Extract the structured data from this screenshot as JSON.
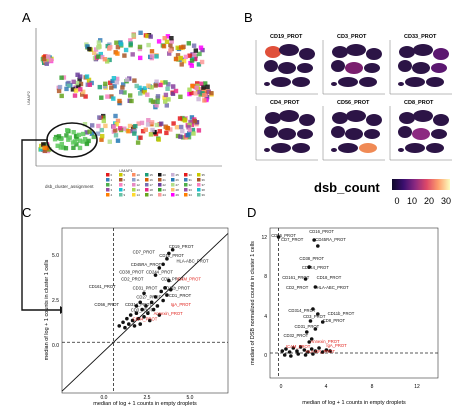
{
  "panel_labels": {
    "a": "A",
    "b": "B",
    "c": "C",
    "d": "D"
  },
  "panel_a": {
    "xlabel": "UMAP1",
    "ylabel": "UMAP2",
    "legend_title": "dsb_cluster_assignment",
    "legend_keys": [
      "0",
      "1",
      "2",
      "3",
      "4",
      "5",
      "6",
      "7",
      "8",
      "9",
      "10",
      "11",
      "12",
      "13",
      "14",
      "15",
      "16",
      "17",
      "18",
      "19",
      "20",
      "21",
      "22",
      "23",
      "24",
      "25",
      "26",
      "27",
      "28",
      "29",
      "30",
      "31",
      "32",
      "33",
      "34",
      "35",
      "36",
      "37",
      "38",
      "39"
    ]
  },
  "panel_b": {
    "facets": [
      {
        "title": "CD19_PROT"
      },
      {
        "title": "CD3_PROT"
      },
      {
        "title": "CD33_PROT"
      },
      {
        "title": "CD4_PROT"
      },
      {
        "title": "CD56_PROT"
      },
      {
        "title": "CD8_PROT"
      }
    ],
    "colorbar": {
      "title": "dsb_count",
      "ticks": [
        "0",
        "10",
        "20",
        "30"
      ],
      "colors": [
        "#0d0829",
        "#3b0f6f",
        "#8c2981",
        "#de4968",
        "#fe9f6d",
        "#fcfdbf"
      ]
    }
  },
  "chart_data": [
    {
      "type": "scatter",
      "panel": "C",
      "title": "",
      "xlabel": "median of log + 1 counts in empty droplets",
      "ylabel": "median of log + 1 counts in cluster 1 cells",
      "xlim": [
        -2.7,
        6
      ],
      "ylim": [
        -2.8,
        6.3
      ],
      "xticks": [
        "0.0",
        "2.5",
        "5.0"
      ],
      "yticks": [
        "0.0",
        "2.5",
        "5.0"
      ],
      "reference_lines": {
        "hline": 0,
        "vline": 0,
        "diagonal": "y = x"
      },
      "points": [
        {
          "x": 0.3,
          "y": 0.9
        },
        {
          "x": 0.5,
          "y": 1.1
        },
        {
          "x": 0.6,
          "y": 0.8
        },
        {
          "x": 0.7,
          "y": 1.3
        },
        {
          "x": 0.8,
          "y": 1.0
        },
        {
          "x": 0.9,
          "y": 1.5
        },
        {
          "x": 1.0,
          "y": 1.2
        },
        {
          "x": 1.1,
          "y": 0.9
        },
        {
          "x": 1.2,
          "y": 1.6
        },
        {
          "x": 1.3,
          "y": 1.3
        },
        {
          "x": 1.4,
          "y": 1.0
        },
        {
          "x": 1.5,
          "y": 1.8
        },
        {
          "x": 1.6,
          "y": 1.4
        },
        {
          "x": 1.7,
          "y": 2.0
        },
        {
          "x": 1.8,
          "y": 1.6
        },
        {
          "x": 1.9,
          "y": 1.2
        },
        {
          "x": 2.0,
          "y": 2.2
        },
        {
          "x": 2.1,
          "y": 1.8
        },
        {
          "x": 2.2,
          "y": 2.5
        },
        {
          "x": 2.3,
          "y": 2.0
        },
        {
          "x": 2.4,
          "y": 1.5
        },
        {
          "x": 2.5,
          "y": 2.8
        },
        {
          "x": 2.6,
          "y": 2.3
        },
        {
          "x": 2.7,
          "y": 3.0
        },
        {
          "x": 2.8,
          "y": 2.6
        },
        {
          "x": 2.9,
          "y": 3.4
        },
        {
          "x": 3.0,
          "y": 2.9
        },
        {
          "x": 2.2,
          "y": 3.7
        },
        {
          "x": 2.4,
          "y": 4.1
        },
        {
          "x": 2.6,
          "y": 4.3
        },
        {
          "x": 2.8,
          "y": 4.6
        },
        {
          "x": 2.9,
          "y": 4.9
        },
        {
          "x": 3.1,
          "y": 5.1
        },
        {
          "x": 1.6,
          "y": 2.7
        },
        {
          "x": 1.4,
          "y": 2.2
        },
        {
          "x": 1.2,
          "y": 2.0
        }
      ],
      "labels": [
        {
          "text": "CD19_PROT",
          "x": 2.9,
          "y": 5.2,
          "color": "black"
        },
        {
          "text": "CD7_PROT",
          "x": 1.0,
          "y": 4.9,
          "color": "black"
        },
        {
          "text": "CD16_PROT",
          "x": 2.4,
          "y": 4.7,
          "color": "black"
        },
        {
          "text": "HLA-ABC_PROT",
          "x": 3.3,
          "y": 4.4,
          "color": "black"
        },
        {
          "text": "CD45RA_PROT",
          "x": 0.9,
          "y": 4.2,
          "color": "black"
        },
        {
          "text": "CD38_PROT",
          "x": 0.3,
          "y": 3.8,
          "color": "black"
        },
        {
          "text": "CD244_PROT",
          "x": 1.7,
          "y": 3.8,
          "color": "black"
        },
        {
          "text": "CD2_PROT",
          "x": 0.4,
          "y": 3.4,
          "color": "black"
        },
        {
          "text": "CD8_PROT",
          "x": 2.5,
          "y": 3.4,
          "color": "black"
        },
        {
          "text": "ICAM_PROT",
          "x": 3.3,
          "y": 3.4,
          "color": "red"
        },
        {
          "text": "CD161_PROT",
          "x": -1.3,
          "y": 3.0,
          "color": "black"
        },
        {
          "text": "CD31_PROT",
          "x": 1.0,
          "y": 2.9,
          "color": "black"
        },
        {
          "text": "CD11b_PROT",
          "x": 2.6,
          "y": 2.9,
          "color": "black"
        },
        {
          "text": "CD1_PROT",
          "x": 2.9,
          "y": 2.5,
          "color": "black"
        },
        {
          "text": "CD27_PROT",
          "x": 1.2,
          "y": 2.4,
          "color": "black"
        },
        {
          "text": "IgA_PROT",
          "x": 3.0,
          "y": 2.0,
          "color": "red"
        },
        {
          "text": "CD56_PROT",
          "x": -1.0,
          "y": 2.0,
          "color": "black"
        },
        {
          "text": "CD314_PROT",
          "x": 0.6,
          "y": 2.0,
          "color": "black"
        },
        {
          "text": "CD3_PROT",
          "x": 0.9,
          "y": 1.7,
          "color": "black"
        },
        {
          "text": "Annexin_PROT",
          "x": 2.1,
          "y": 1.5,
          "color": "red"
        },
        {
          "text": "CD44_PROT",
          "x": 1.0,
          "y": 1.2,
          "color": "red"
        }
      ]
    },
    {
      "type": "scatter",
      "panel": "D",
      "title": "",
      "xlabel": "median of log + 1 counts in empty droplets",
      "ylabel": "median of DSB normalized counts in cluster 1 cells",
      "xlim": [
        -0.7,
        13
      ],
      "ylim": [
        -2.5,
        12.5
      ],
      "xticks": [
        "0",
        "4",
        "8",
        "12"
      ],
      "yticks": [
        "0",
        "4",
        "8",
        "12"
      ],
      "reference_lines": {
        "hline": 0,
        "vline": 0
      },
      "points": [
        {
          "x": 0.3,
          "y": 0.2
        },
        {
          "x": 0.6,
          "y": 0.4
        },
        {
          "x": 0.9,
          "y": 0.1
        },
        {
          "x": 1.2,
          "y": 0.5
        },
        {
          "x": 1.5,
          "y": 0.2
        },
        {
          "x": 1.8,
          "y": 0.6
        },
        {
          "x": 2.1,
          "y": 0.3
        },
        {
          "x": 2.4,
          "y": 0.1
        },
        {
          "x": 2.7,
          "y": 0.4
        },
        {
          "x": 3.0,
          "y": 0.2
        },
        {
          "x": 3.3,
          "y": 0.5
        },
        {
          "x": 3.6,
          "y": 0.1
        },
        {
          "x": 3.9,
          "y": 0.3
        },
        {
          "x": 4.2,
          "y": 0.2
        },
        {
          "x": 0.5,
          "y": -0.2
        },
        {
          "x": 1.0,
          "y": -0.3
        },
        {
          "x": 1.6,
          "y": -0.1
        },
        {
          "x": 2.2,
          "y": -0.2
        },
        {
          "x": 2.8,
          "y": -0.1
        },
        {
          "x": 2.5,
          "y": 1.1
        },
        {
          "x": 2.7,
          "y": 1.4
        },
        {
          "x": 2.3,
          "y": 2.1
        },
        {
          "x": 3.0,
          "y": 2.4
        },
        {
          "x": 2.6,
          "y": 3.2
        },
        {
          "x": 3.2,
          "y": 3.9
        },
        {
          "x": 2.8,
          "y": 4.4
        },
        {
          "x": 3.0,
          "y": 6.6
        },
        {
          "x": 2.2,
          "y": 7.4
        },
        {
          "x": 2.5,
          "y": 8.6
        },
        {
          "x": 2.9,
          "y": 11.3
        },
        {
          "x": 3.2,
          "y": 10.7
        },
        {
          "x": 0.0,
          "y": 11.6
        },
        {
          "x": 3.6,
          "y": 3.1
        }
      ],
      "labels": [
        {
          "text": "CD56_PROT",
          "x": -0.6,
          "y": 11.6,
          "color": "black"
        },
        {
          "text": "CD16_PROT",
          "x": 2.5,
          "y": 12.0,
          "color": "black"
        },
        {
          "text": "CD7_PROT",
          "x": 0.2,
          "y": 11.2,
          "color": "black"
        },
        {
          "text": "CD45RA_PROT",
          "x": 3.0,
          "y": 11.2,
          "color": "black"
        },
        {
          "text": "CD38_PROT",
          "x": 1.7,
          "y": 9.3,
          "color": "black"
        },
        {
          "text": "CD244_PROT",
          "x": 1.9,
          "y": 8.4,
          "color": "black"
        },
        {
          "text": "CD161_PROT",
          "x": 0.3,
          "y": 7.4,
          "color": "black"
        },
        {
          "text": "CD18_PROT",
          "x": 3.1,
          "y": 7.4,
          "color": "black"
        },
        {
          "text": "CD2_PROT",
          "x": 0.6,
          "y": 6.4,
          "color": "black"
        },
        {
          "text": "HLA-ABC_PROT",
          "x": 3.1,
          "y": 6.4,
          "color": "black"
        },
        {
          "text": "CD314_PROT",
          "x": 0.8,
          "y": 4.1,
          "color": "black"
        },
        {
          "text": "CD11b_PROT",
          "x": 4.0,
          "y": 3.8,
          "color": "black"
        },
        {
          "text": "CD3_PROT",
          "x": 2.0,
          "y": 3.5,
          "color": "black"
        },
        {
          "text": "CD8_PROT",
          "x": 3.6,
          "y": 3.1,
          "color": "black"
        },
        {
          "text": "CD31_PROT",
          "x": 1.3,
          "y": 2.5,
          "color": "black"
        },
        {
          "text": "CD32_PROT",
          "x": 0.4,
          "y": 1.6,
          "color": "black"
        },
        {
          "text": "Annexin_PROT",
          "x": 2.6,
          "y": 1.0,
          "color": "red"
        },
        {
          "text": "ICAM_PROT",
          "x": 0.6,
          "y": 0.5,
          "color": "red"
        },
        {
          "text": "HLA-DR_PROT",
          "x": 2.2,
          "y": 0.0,
          "color": "red"
        },
        {
          "text": "IgA_PROT",
          "x": 3.9,
          "y": 0.6,
          "color": "red"
        }
      ]
    }
  ]
}
